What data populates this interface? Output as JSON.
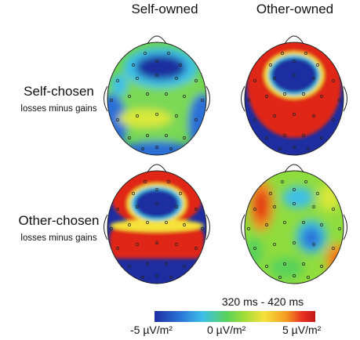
{
  "columns": {
    "self": "Self-owned",
    "other": "Other-owned"
  },
  "rows": {
    "self": {
      "title": "Self-chosen",
      "subtitle": "losses minus gains"
    },
    "other": {
      "title": "Other-chosen",
      "subtitle": "losses minus gains"
    }
  },
  "time_window": "320 ms - 420 ms",
  "colorbar": {
    "min": "-5 µV/m²",
    "mid": "0 µV/m²",
    "max": "5 µV/m²"
  },
  "colors": {
    "neg": "#1e2ea0",
    "mid": "#5ad25a",
    "pos": "#e02818"
  }
}
